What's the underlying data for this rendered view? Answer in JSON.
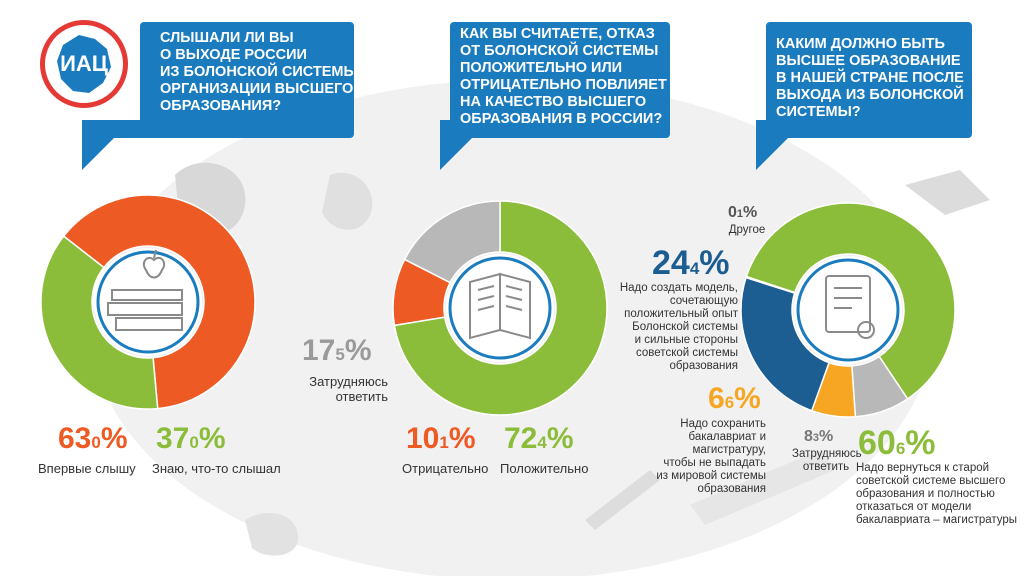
{
  "logo_text": "ИАЦ",
  "colors": {
    "blue": "#1a7cbf",
    "orange": "#ee5a24",
    "green": "#8cbd3a",
    "gray": "#b8b8b8",
    "yellow": "#f6a623",
    "darkblue": "#1c5d92"
  },
  "question1": {
    "lines": [
      "СЛЫШАЛИ ЛИ ВЫ",
      "О ВЫХОДЕ РОССИИ",
      "ИЗ БОЛОНСКОЙ СИСТЕМЫ",
      "ОРГАНИЗАЦИИ ВЫСШЕГО",
      "ОБРАЗОВАНИЯ?"
    ]
  },
  "question2": {
    "lines": [
      "КАК ВЫ СЧИТАЕТЕ, ОТКАЗ",
      "ОТ БОЛОНСКОЙ СИСТЕМЫ",
      "ПОЛОЖИТЕЛЬНО ИЛИ",
      "ОТРИЦАТЕЛЬНО ПОВЛИЯЕТ",
      "НА КАЧЕСТВО ВЫСШЕГО",
      "ОБРАЗОВАНИЯ В РОССИИ?"
    ]
  },
  "question3": {
    "lines": [
      "КАКИМ ДОЛЖНО БЫТЬ",
      "ВЫСШЕЕ ОБРАЗОВАНИЕ",
      "В НАШЕЙ СТРАНЕ ПОСЛЕ",
      "ВЫХОДА ИЗ БОЛОНСКОЙ",
      "СИСТЕМЫ?"
    ]
  },
  "chart_data": [
    {
      "type": "pie",
      "donut": true,
      "slices": [
        {
          "name": "Впервые слышу",
          "value": 63.0,
          "whole": "63",
          "dec": "0",
          "color": "#ee5a24"
        },
        {
          "name": "Знаю, что-то слышал",
          "value": 37.0,
          "whole": "37",
          "dec": "0",
          "color": "#8cbd3a"
        }
      ]
    },
    {
      "type": "pie",
      "donut": true,
      "slices": [
        {
          "name": "Положительно",
          "value": 72.4,
          "whole": "72",
          "dec": "4",
          "color": "#8cbd3a"
        },
        {
          "name": "Отрицательно",
          "value": 10.1,
          "whole": "10",
          "dec": "1",
          "color": "#ee5a24"
        },
        {
          "name": "Затрудняюсь ответить",
          "value": 17.5,
          "whole": "17",
          "dec": "5",
          "color": "#b8b8b8"
        }
      ]
    },
    {
      "type": "pie",
      "donut": true,
      "slices": [
        {
          "name": "Надо вернуться к старой советской системе высшего образования и полностью отказаться от модели бакалавриата – магистратуры",
          "value": 60.6,
          "whole": "60",
          "dec": "6",
          "color": "#8cbd3a"
        },
        {
          "name": "Затрудняюсь ответить",
          "value": 8.3,
          "whole": "8",
          "dec": "3",
          "color": "#b8b8b8"
        },
        {
          "name": "Надо сохранить бакалавриат и магистратуру, чтобы не выпадать из мировой системы образования",
          "value": 6.6,
          "whole": "6",
          "dec": "6",
          "color": "#f6a623"
        },
        {
          "name": "Надо создать модель, сочетающую положительный опыт Болонской системы и сильные стороны советской системы образования",
          "value": 24.4,
          "whole": "24",
          "dec": "4",
          "color": "#1c5d92"
        },
        {
          "name": "Другое",
          "value": 0.1,
          "whole": "0",
          "dec": "1",
          "color": "#888888"
        }
      ]
    }
  ],
  "labels": {
    "c1_orange": {
      "whole": "63",
      "dec": "0",
      "sym": "%",
      "text": [
        "Впервые слышу"
      ]
    },
    "c1_green": {
      "whole": "37",
      "dec": "0",
      "sym": "%",
      "text": [
        "Знаю, что-то слышал"
      ]
    },
    "c2_gray": {
      "whole": "17",
      "dec": "5",
      "sym": "%",
      "text": [
        "Затрудняюсь",
        "ответить"
      ]
    },
    "c2_orange": {
      "whole": "10",
      "dec": "1",
      "sym": "%",
      "text": [
        "Отрицательно"
      ]
    },
    "c2_green": {
      "whole": "72",
      "dec": "4",
      "sym": "%",
      "text": [
        "Положительно"
      ]
    },
    "c3_other": {
      "whole": "0",
      "dec": "1",
      "sym": "%",
      "text": [
        "Другое"
      ]
    },
    "c3_blue": {
      "whole": "24",
      "dec": "4",
      "sym": "%",
      "text": [
        "Надо создать модель,",
        "сочетающую",
        "положительный опыт",
        "Болонской системы",
        "и сильные стороны",
        "советской системы",
        "образования"
      ]
    },
    "c3_yellow": {
      "whole": "6",
      "dec": "6",
      "sym": "%",
      "text": [
        "Надо сохранить",
        "бакалавриат и",
        "магистратуру,",
        "чтобы не выпадать",
        "из мировой системы",
        "образования"
      ]
    },
    "c3_gray": {
      "whole": "8",
      "dec": "3",
      "sym": "%",
      "text": [
        "Затрудняюсь",
        "ответить"
      ]
    },
    "c3_green": {
      "whole": "60",
      "dec": "6",
      "sym": "%",
      "text": [
        "Надо вернуться к старой",
        "советской системе высшего",
        "образования и полностью",
        "отказаться от модели",
        "бакалавриата – магистратуры"
      ]
    }
  }
}
